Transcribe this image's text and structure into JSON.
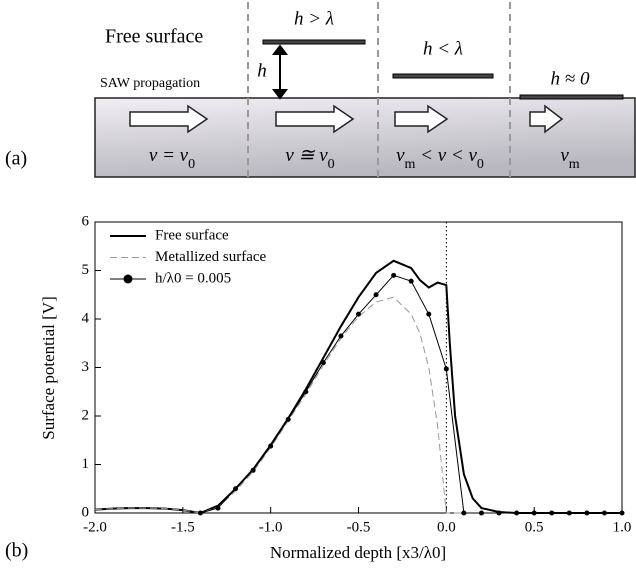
{
  "diagram": {
    "panel_label": "(a)",
    "free_surface": "Free surface",
    "saw_propagation": "SAW propagation",
    "h_gt": "h > λ",
    "h": "h",
    "h_lt": "h < λ",
    "h_approx": "h ≈ 0",
    "regions": [
      [
        {
          "t": "v = v"
        },
        {
          "s": "0"
        }
      ],
      [
        {
          "t": "v ≅ v"
        },
        {
          "s": "0"
        }
      ],
      [
        {
          "t": "v"
        },
        {
          "s": "m"
        },
        {
          "t": " < v < v"
        },
        {
          "s": "0"
        }
      ],
      [
        {
          "t": "v"
        },
        {
          "s": "m"
        }
      ]
    ]
  },
  "chart_data": {
    "type": "line",
    "panel_label": "(b)",
    "x_label": "Normalized depth [x3/λ0]",
    "y_label": "Surface potential [V]",
    "xlim": [
      -2,
      1
    ],
    "ylim": [
      0,
      6
    ],
    "xticks": [
      {
        "value": -2,
        "label": "-2.0"
      },
      -1.5,
      {
        "value": -1,
        "label": "-1.0"
      },
      -0.5,
      {
        "value": 0,
        "label": "0.0"
      },
      0.5,
      {
        "value": 1,
        "label": "1.0"
      }
    ],
    "yticks": [
      0,
      1,
      2,
      3,
      4,
      5,
      6
    ],
    "reference_line_x": 0,
    "series": [
      {
        "name": "Free surface",
        "color": "#000000",
        "style": "solid",
        "x": [
          -2,
          -1.9,
          -1.8,
          -1.7,
          -1.6,
          -1.5,
          -1.4,
          -1.3,
          -1.2,
          -1.1,
          -1.0,
          -0.9,
          -0.8,
          -0.7,
          -0.6,
          -0.5,
          -0.4,
          -0.3,
          -0.2,
          -0.15,
          -0.1,
          -0.05,
          0,
          0.02,
          0.05,
          0.1,
          0.15,
          0.2,
          0.3,
          0.4,
          0.5,
          0.6,
          0.8,
          1.0
        ],
        "values": [
          0.07,
          0.09,
          0.1,
          0.1,
          0.09,
          0.06,
          0,
          0.15,
          0.5,
          0.9,
          1.4,
          1.95,
          2.55,
          3.2,
          3.85,
          4.45,
          4.95,
          5.2,
          5.05,
          4.8,
          4.65,
          4.75,
          4.7,
          3.5,
          2.0,
          0.8,
          0.3,
          0.1,
          0.02,
          0,
          0,
          0,
          0,
          0
        ]
      },
      {
        "name": "Metallized surface",
        "color": "#999999",
        "style": "dashed",
        "x": [
          -2,
          -1.9,
          -1.8,
          -1.7,
          -1.6,
          -1.5,
          -1.4,
          -1.3,
          -1.2,
          -1.1,
          -1.0,
          -0.9,
          -0.8,
          -0.7,
          -0.6,
          -0.5,
          -0.4,
          -0.3,
          -0.2,
          -0.15,
          -0.1,
          -0.05,
          0,
          0.2,
          0.5,
          1.0
        ],
        "values": [
          0.07,
          0.09,
          0.1,
          0.1,
          0.09,
          0.06,
          0,
          0.12,
          0.45,
          0.85,
          1.35,
          1.9,
          2.45,
          3.05,
          3.6,
          4.05,
          4.35,
          4.45,
          4.1,
          3.7,
          3.0,
          1.8,
          0,
          0,
          0,
          0
        ]
      },
      {
        "name": "h/λ0 = 0.005",
        "color": "#000000",
        "style": "markers",
        "x": [
          -1.4,
          -1.3,
          -1.2,
          -1.1,
          -1.0,
          -0.9,
          -0.8,
          -0.7,
          -0.6,
          -0.5,
          -0.4,
          -0.3,
          -0.2,
          -0.1,
          0,
          0.1,
          0.2,
          0.3,
          0.4,
          0.5,
          0.6,
          0.7,
          0.8,
          0.9,
          1.0
        ],
        "values": [
          0,
          0.1,
          0.5,
          0.88,
          1.38,
          1.93,
          2.5,
          3.1,
          3.65,
          4.1,
          4.5,
          4.9,
          4.78,
          4.1,
          2.97,
          0,
          0,
          0,
          0,
          0,
          0,
          0,
          0,
          0,
          0
        ]
      }
    ]
  }
}
